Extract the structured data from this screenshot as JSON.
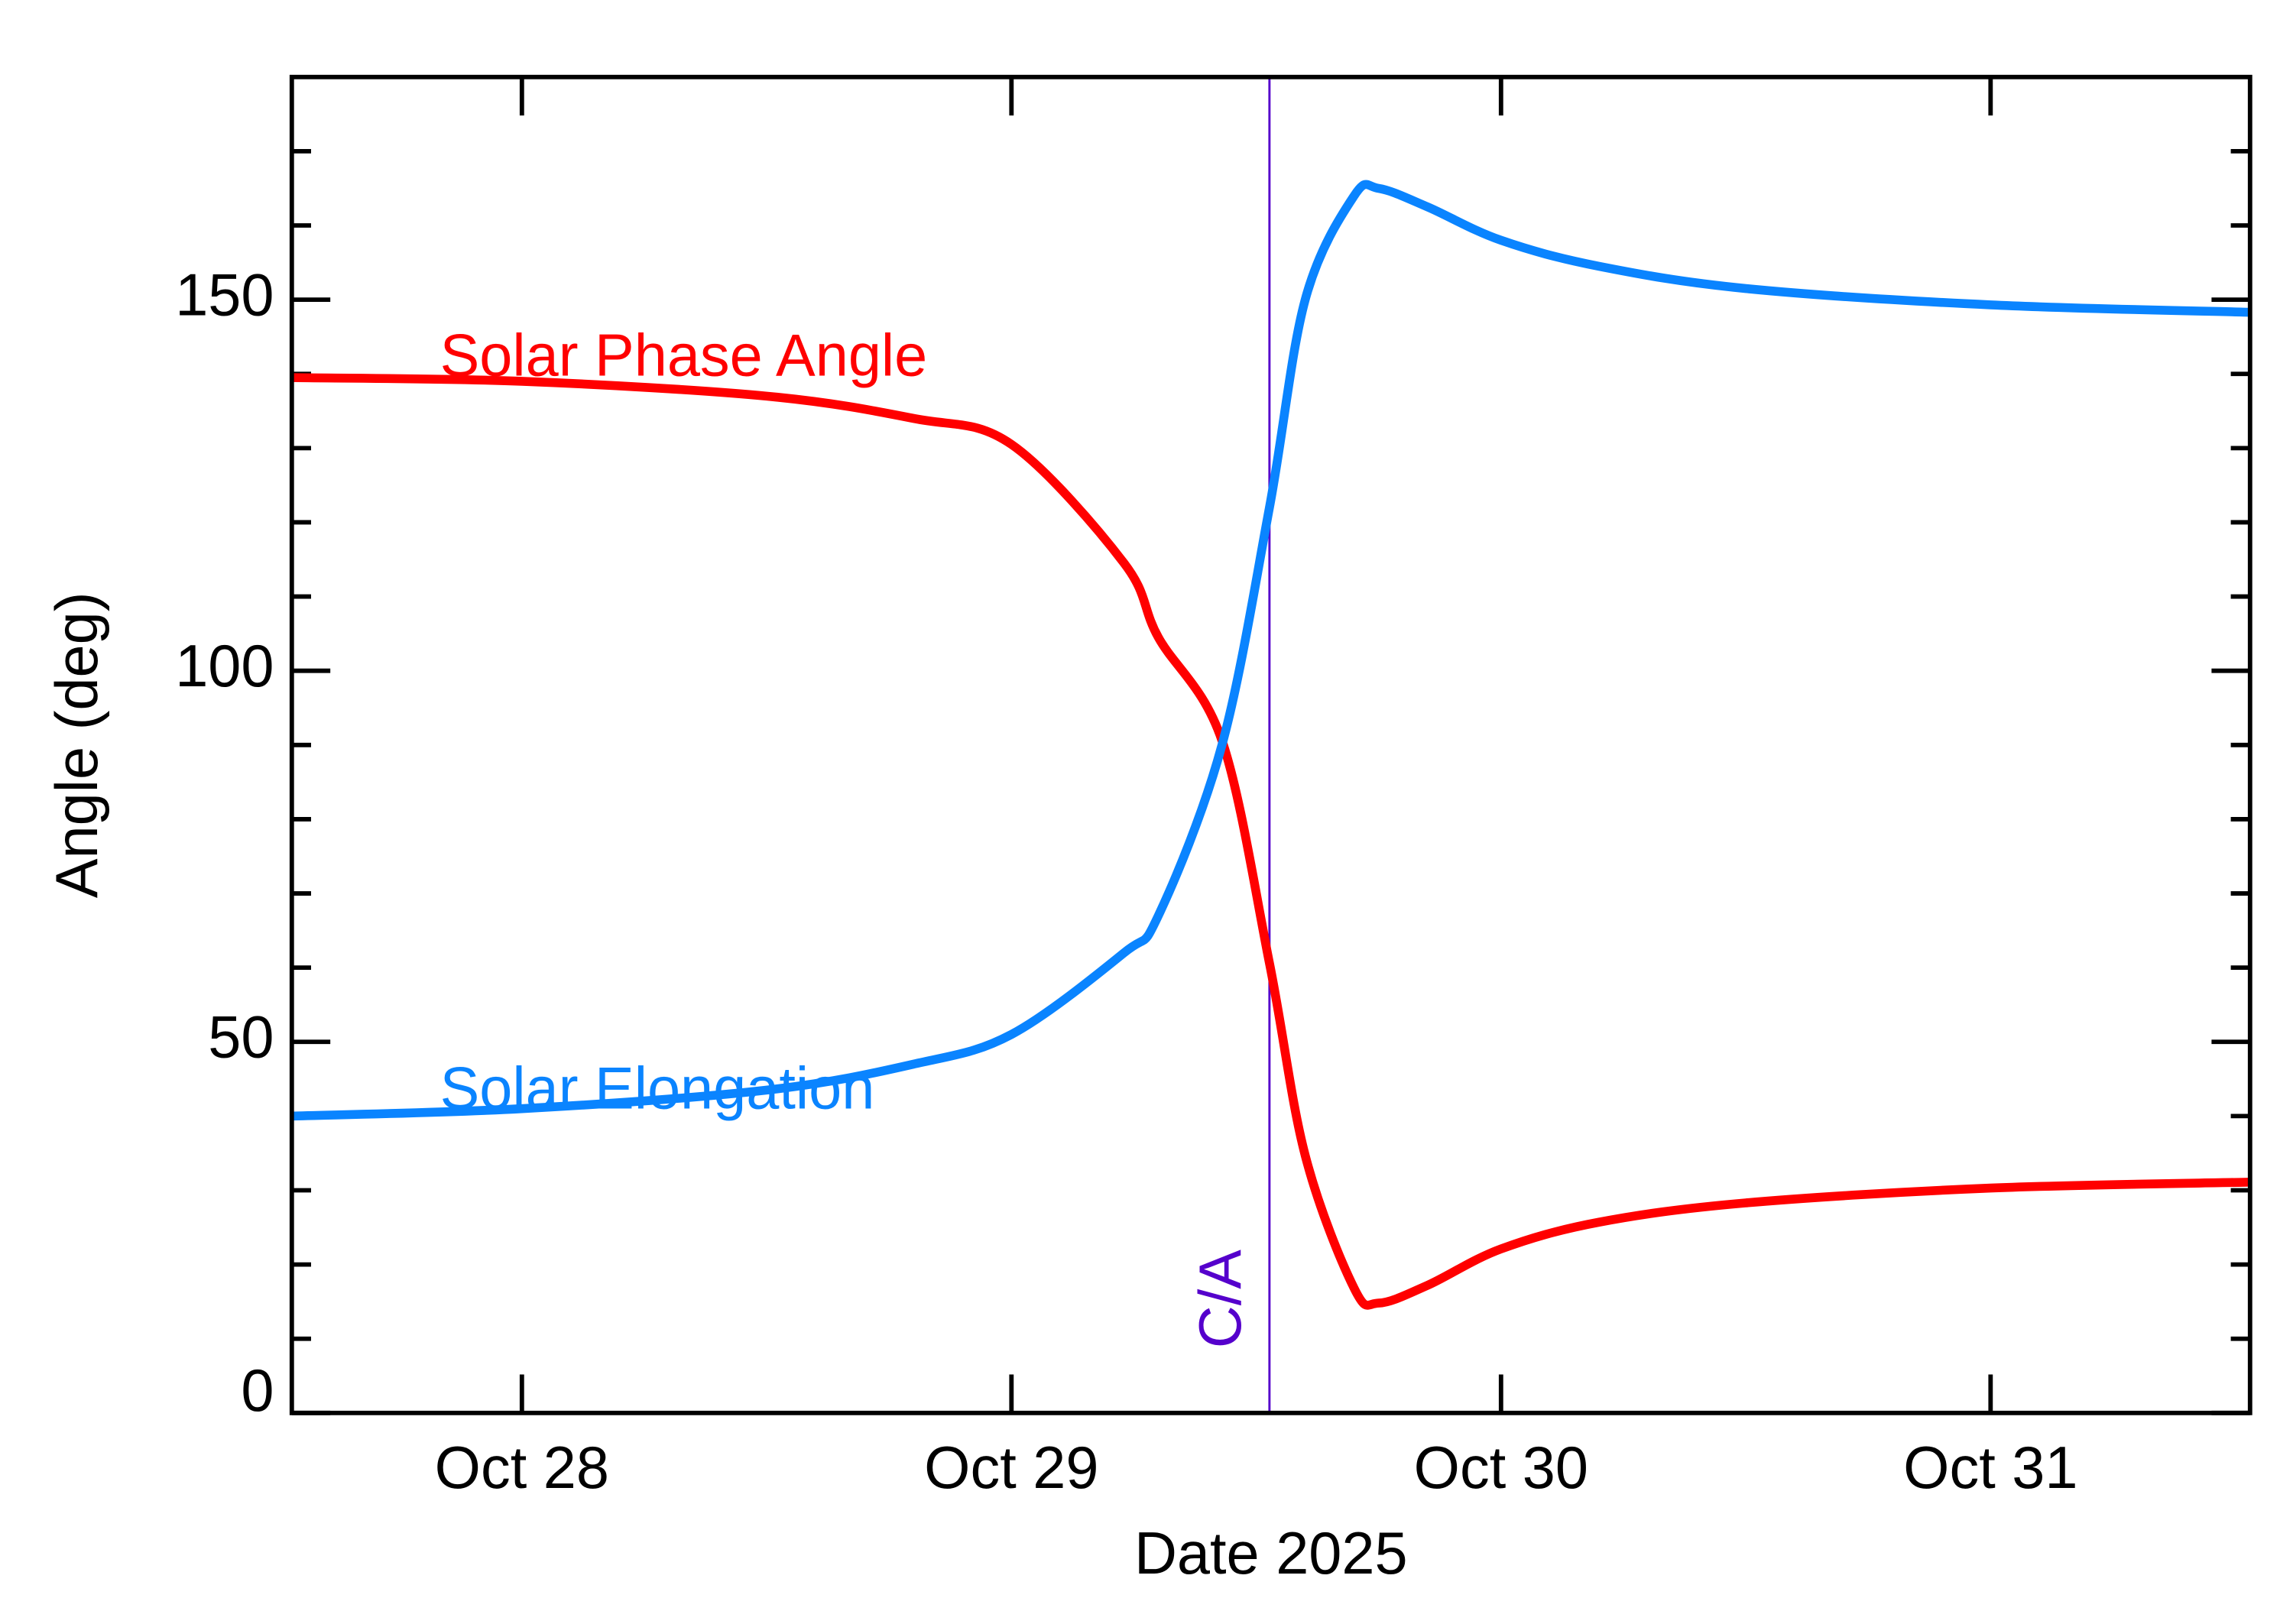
{
  "chart_data": {
    "type": "line",
    "xlabel": "Date 2025",
    "ylabel": "Angle (deg)",
    "x": [
      27.53,
      28.0,
      28.5,
      28.8,
      29.0,
      29.23,
      29.3,
      29.43,
      29.527,
      29.6,
      29.7,
      29.75,
      29.85,
      30.0,
      30.2,
      30.5,
      31.0,
      31.53
    ],
    "series": [
      {
        "name": "Solar Phase Angle",
        "color": "#ff0000",
        "values": [
          139.5,
          139,
          137,
          134,
          130.5,
          114.5,
          104.5,
          90.6,
          60.6,
          34.7,
          16.8,
          14.8,
          17.2,
          22.1,
          25.7,
          28.3,
          30.3,
          31.1
        ]
      },
      {
        "name": "Solar Elongation",
        "color": "#0a84ff",
        "values": [
          40,
          41,
          43.5,
          47,
          51,
          62,
          67,
          90,
          122,
          150,
          164,
          165,
          162.5,
          158,
          154.5,
          151.5,
          149.3,
          148.3
        ]
      }
    ],
    "annotation": {
      "text": "C/A",
      "x": 29.527,
      "color": "#5500cc"
    },
    "xlim": [
      27.53,
      31.53
    ],
    "xticks": [
      {
        "value": 28,
        "label": "Oct 28"
      },
      {
        "value": 29,
        "label": "Oct 29"
      },
      {
        "value": 30,
        "label": "Oct 30"
      },
      {
        "value": 31,
        "label": "Oct 31"
      }
    ],
    "ylim": [
      0,
      180
    ],
    "yticks": [
      0,
      50,
      100,
      150
    ],
    "yminor_ticks": [
      10,
      20,
      30,
      40,
      60,
      70,
      80,
      90,
      110,
      120,
      130,
      140,
      160,
      170
    ]
  }
}
